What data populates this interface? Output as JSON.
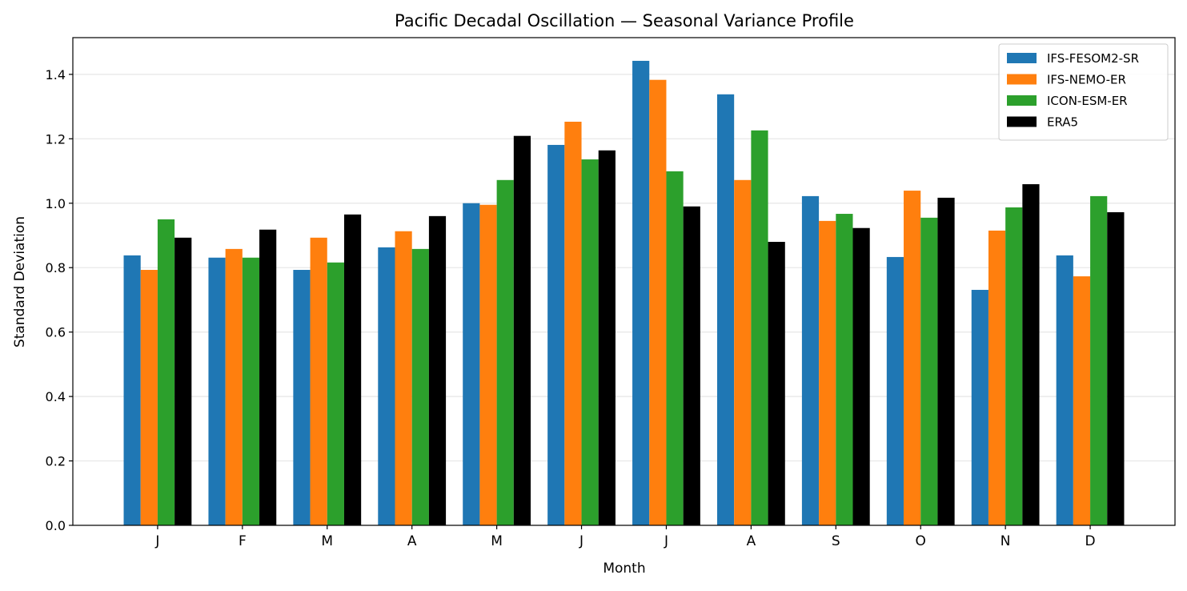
{
  "chart_data": {
    "type": "bar",
    "title": "Pacific Decadal Oscillation — Seasonal Variance Profile",
    "xlabel": "Month",
    "ylabel": "Standard Deviation",
    "categories": [
      "J",
      "F",
      "M",
      "A",
      "M",
      "J",
      "J",
      "A",
      "S",
      "O",
      "N",
      "D"
    ],
    "ylim": [
      0,
      1.514
    ],
    "yticks": [
      "0.0",
      "0.2",
      "0.4",
      "0.6",
      "0.8",
      "1.0",
      "1.2",
      "1.4"
    ],
    "grid": "horizontal",
    "legend_position": "top-right",
    "series": [
      {
        "name": "IFS-FESOM2-SR",
        "color": "#1f77b4",
        "values": [
          0.838,
          0.831,
          0.793,
          0.863,
          1.0,
          1.181,
          1.442,
          1.338,
          1.022,
          0.833,
          0.731,
          0.838
        ]
      },
      {
        "name": "IFS-NEMO-ER",
        "color": "#ff7f0e",
        "values": [
          0.793,
          0.858,
          0.893,
          0.913,
          0.995,
          1.253,
          1.383,
          1.072,
          0.945,
          1.039,
          0.915,
          0.773
        ]
      },
      {
        "name": "ICON-ESM-ER",
        "color": "#2ca02c",
        "values": [
          0.95,
          0.831,
          0.816,
          0.858,
          1.072,
          1.136,
          1.099,
          1.226,
          0.967,
          0.955,
          0.987,
          1.022
        ]
      },
      {
        "name": "ERA5",
        "color": "#000000",
        "values": [
          0.893,
          0.918,
          0.965,
          0.96,
          1.209,
          1.164,
          0.99,
          0.88,
          0.923,
          1.017,
          1.059,
          0.972
        ]
      }
    ]
  }
}
